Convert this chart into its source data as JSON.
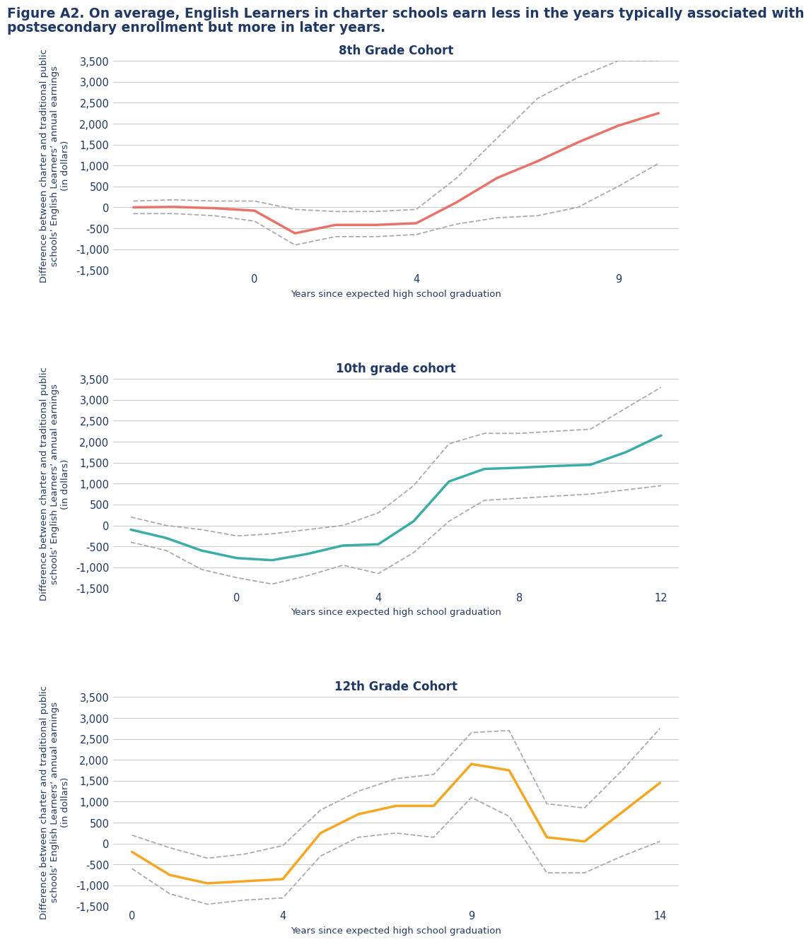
{
  "figure_title_line1": "Figure A2. On average, English Learners in charter schools earn less in the years typically associated with",
  "figure_title_line2": "postsecondary enrollment but more in later years.",
  "ylabel": "Difference between charter and traditional public\nschools’ English Learners’ annual earnings\n(in dollars)",
  "xlabel": "Years since expected high school graduation",
  "ylim": [
    -1500,
    3500
  ],
  "yticks": [
    -1500,
    -1000,
    -500,
    0,
    500,
    1000,
    1500,
    2000,
    2500,
    3000,
    3500
  ],
  "panels": [
    {
      "title": "8th Grade Cohort",
      "color": "#E8736A",
      "x": [
        -3,
        -2,
        -1,
        0,
        1,
        2,
        3,
        4,
        5,
        6,
        7,
        8,
        9,
        10
      ],
      "y": [
        0,
        10,
        -20,
        -80,
        -620,
        -420,
        -420,
        -380,
        120,
        700,
        1100,
        1550,
        1950,
        2250
      ],
      "ci_upper": [
        150,
        180,
        150,
        150,
        -50,
        -100,
        -100,
        -50,
        700,
        1650,
        2600,
        3100,
        3500,
        3500
      ],
      "ci_lower": [
        -150,
        -150,
        -200,
        -330,
        -900,
        -700,
        -700,
        -650,
        -400,
        -250,
        -200,
        0,
        500,
        1050
      ],
      "xticks": [
        0,
        4,
        9
      ],
      "xlim": [
        -3.5,
        10.5
      ]
    },
    {
      "title": "10th grade cohort",
      "color": "#3AADA8",
      "x": [
        -3,
        -2,
        -1,
        0,
        1,
        2,
        3,
        4,
        5,
        6,
        7,
        8,
        9,
        10,
        11,
        12
      ],
      "y": [
        -100,
        -300,
        -600,
        -780,
        -830,
        -680,
        -480,
        -450,
        100,
        1050,
        1350,
        1380,
        1420,
        1450,
        1750,
        2150
      ],
      "ci_upper": [
        200,
        0,
        -100,
        -250,
        -200,
        -100,
        0,
        300,
        950,
        1950,
        2200,
        2200,
        2250,
        2300,
        2800,
        3300
      ],
      "ci_lower": [
        -400,
        -600,
        -1050,
        -1250,
        -1400,
        -1200,
        -950,
        -1150,
        -650,
        100,
        600,
        650,
        700,
        750,
        850,
        950
      ],
      "xticks": [
        0,
        4,
        8,
        12
      ],
      "xlim": [
        -3.5,
        12.5
      ]
    },
    {
      "title": "12th Grade Cohort",
      "color": "#F5A623",
      "x": [
        0,
        1,
        2,
        3,
        4,
        5,
        6,
        7,
        8,
        9,
        10,
        11,
        12,
        13,
        14
      ],
      "y": [
        -200,
        -750,
        -950,
        -900,
        -850,
        250,
        700,
        900,
        900,
        1900,
        1750,
        150,
        50,
        750,
        1450
      ],
      "ci_upper": [
        200,
        -100,
        -350,
        -250,
        -50,
        800,
        1250,
        1550,
        1650,
        2650,
        2700,
        950,
        850,
        1750,
        2750
      ],
      "ci_lower": [
        -600,
        -1200,
        -1450,
        -1350,
        -1300,
        -300,
        150,
        250,
        150,
        1100,
        650,
        -700,
        -700,
        -300,
        50
      ],
      "xticks": [
        0,
        4,
        9,
        14
      ],
      "xlim": [
        -0.5,
        14.5
      ]
    }
  ],
  "title_color": "#1F3864",
  "axis_label_color": "#1F3864",
  "tick_label_color": "#1F3864",
  "grid_color": "#C8C8C8",
  "ci_color": "#AAAAAA",
  "background_color": "#FFFFFF",
  "fig_title_fontsize": 13.5,
  "panel_title_fontsize": 12,
  "axis_label_fontsize": 9.5,
  "tick_fontsize": 10.5,
  "ylabel_fontsize": 9.5
}
